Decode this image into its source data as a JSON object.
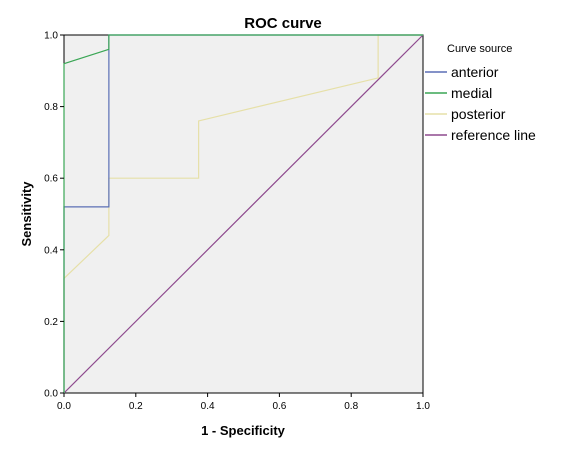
{
  "chart_data": {
    "type": "line",
    "title": "ROC curve",
    "xlabel": "1 - Specificity",
    "ylabel": "Sensitivity",
    "xlim": [
      0,
      1
    ],
    "ylim": [
      0,
      1
    ],
    "x_ticks": [
      "0.0",
      "0.2",
      "0.4",
      "0.6",
      "0.8",
      "1.0"
    ],
    "y_ticks": [
      "0.0",
      "0.2",
      "0.4",
      "0.6",
      "0.8",
      "1.0"
    ],
    "grid": false,
    "plot_background": "#f0f0f0",
    "legend": {
      "title": "Curve source",
      "placement": "right"
    },
    "series": [
      {
        "name": "anterior",
        "color": "#5b6fb5",
        "points": [
          [
            0,
            0
          ],
          [
            0,
            0.52
          ],
          [
            0.125,
            0.52
          ],
          [
            0.125,
            1.0
          ],
          [
            1.0,
            1.0
          ]
        ]
      },
      {
        "name": "medial",
        "color": "#3aa655",
        "points": [
          [
            0,
            0
          ],
          [
            0,
            0.92
          ],
          [
            0.125,
            0.96
          ],
          [
            0.125,
            1.0
          ],
          [
            1.0,
            1.0
          ]
        ]
      },
      {
        "name": "posterior",
        "color": "#e6e0a8",
        "points": [
          [
            0,
            0
          ],
          [
            0,
            0.32
          ],
          [
            0.125,
            0.44
          ],
          [
            0.125,
            0.6
          ],
          [
            0.375,
            0.6
          ],
          [
            0.375,
            0.76
          ],
          [
            0.875,
            0.88
          ],
          [
            0.875,
            1.0
          ],
          [
            1.0,
            1.0
          ]
        ]
      },
      {
        "name": "reference line",
        "color": "#8e4a8e",
        "points": [
          [
            0,
            0
          ],
          [
            1,
            1
          ]
        ]
      }
    ]
  }
}
